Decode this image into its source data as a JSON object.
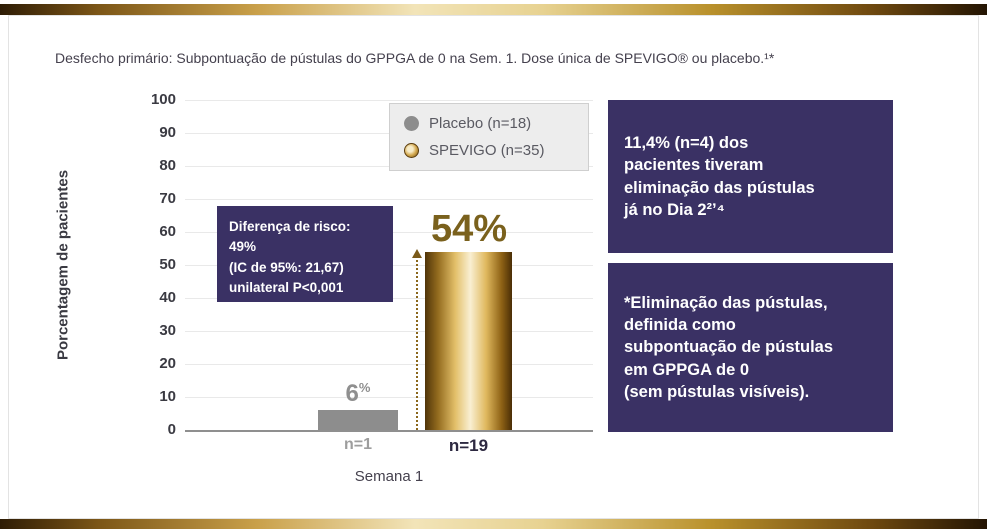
{
  "page": {
    "title": "Desfecho primário: Subpontuação de pústulas do GPPGA de 0 na Sem. 1. Dose única de SPEVIGO® ou placebo.¹*"
  },
  "chart_data": {
    "type": "bar",
    "title": "Desfecho primário: Subpontuação de pústulas do GPPGA de 0 na Sem. 1. Dose única de SPEVIGO® ou placebo.",
    "ylabel": "Porcentagem de pacientes",
    "xlabel": "Semana 1",
    "ylim": [
      0,
      100
    ],
    "yticks": [
      "100",
      "90",
      "80",
      "70",
      "60",
      "50",
      "40",
      "30",
      "20",
      "10",
      "0"
    ],
    "grid": true,
    "categories": [
      "Placebo",
      "SPEVIGO"
    ],
    "series": [
      {
        "name": "Placebo (n=18)",
        "value": 6,
        "value_label": "6",
        "value_unit": "%",
        "n_label": "n=1"
      },
      {
        "name": "SPEVIGO (n=35)",
        "value": 54,
        "value_label": "54%",
        "n_label": "n=19"
      }
    ],
    "legend": {
      "position": "top-right",
      "items": [
        "Placebo (n=18)",
        "SPEVIGO (n=35)"
      ]
    },
    "annotation": {
      "risk_difference": "Diferença de risco: 49%\n(IC de 95%: 21,67)\nunilateral P<0,001"
    }
  },
  "info_boxes": {
    "box1": "11,4% (n=4) dos\npacientes tiveram\neliminação das pústulas\njá no Dia 2²ʼ⁴",
    "box2": "*Eliminação das pústulas,\ndefinida como\nsubpontuação de pústulas\nem GPPGA de 0\n(sem pústulas visíveis)."
  },
  "colors": {
    "purple": "#3a3164",
    "gray_bar": "#8d8d8d",
    "gold_text": "#7a611d",
    "gold_dark": "#503408",
    "gold_light": "#f9efd2"
  }
}
